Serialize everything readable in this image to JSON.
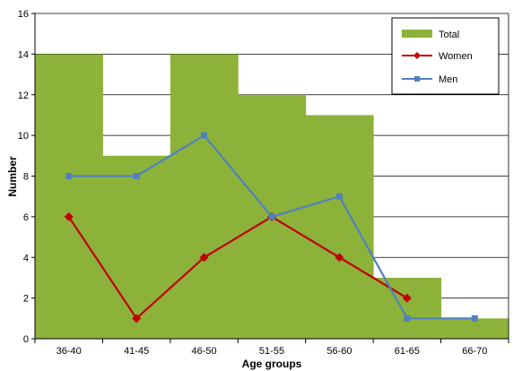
{
  "chart_data": {
    "type": "bar",
    "categories": [
      "36-40",
      "41-45",
      "46-50",
      "51-55",
      "56-60",
      "61-65",
      "66-70"
    ],
    "series": [
      {
        "name": "Total",
        "kind": "bar",
        "color": "#8DB23A",
        "values": [
          14,
          9,
          14,
          12,
          11,
          3,
          1
        ]
      },
      {
        "name": "Women",
        "kind": "line",
        "marker": "diamond",
        "color": "#C00000",
        "values": [
          6,
          1,
          4,
          6,
          4,
          2,
          null
        ]
      },
      {
        "name": "Men",
        "kind": "line",
        "marker": "square",
        "color": "#4F81BD",
        "values": [
          8,
          8,
          10,
          6,
          7,
          1,
          1
        ]
      }
    ],
    "xlabel": "Age groups",
    "ylabel": "Number",
    "ylim": [
      0,
      16
    ],
    "yticks": [
      0,
      2,
      4,
      6,
      8,
      10,
      12,
      14,
      16
    ],
    "grid": true,
    "legend_position": "top-right"
  }
}
